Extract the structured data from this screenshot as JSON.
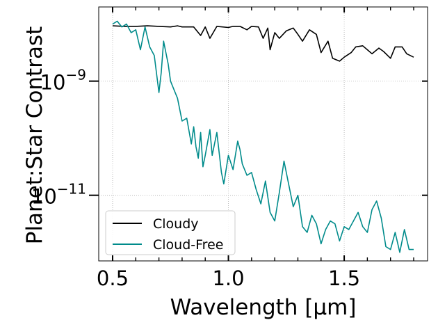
{
  "chart_data": {
    "type": "line",
    "xlabel": "Wavelength [μm]",
    "ylabel": "Planet:Star Contrast",
    "xscale": "linear",
    "yscale": "log",
    "xlim": [
      0.44,
      1.86
    ],
    "ylim_log10": [
      -12.15,
      -7.7
    ],
    "x_ticks": [
      0.5,
      1.0,
      1.5
    ],
    "x_tick_labels": [
      "0.5",
      "1.0",
      "1.5"
    ],
    "y_ticks_log10": [
      -9,
      -11
    ],
    "y_tick_labels": [
      {
        "base": "10",
        "exp": "−9"
      },
      {
        "base": "10",
        "exp": "−11"
      }
    ],
    "grid": true,
    "legend_position": "lower-left",
    "series": [
      {
        "name": "Cloudy",
        "color": "#000000",
        "x": [
          0.5,
          0.55,
          0.6,
          0.65,
          0.7,
          0.75,
          0.78,
          0.8,
          0.85,
          0.88,
          0.9,
          0.92,
          0.95,
          1.0,
          1.02,
          1.05,
          1.08,
          1.1,
          1.13,
          1.15,
          1.17,
          1.18,
          1.2,
          1.22,
          1.25,
          1.28,
          1.3,
          1.32,
          1.35,
          1.38,
          1.4,
          1.43,
          1.45,
          1.48,
          1.5,
          1.53,
          1.55,
          1.58,
          1.6,
          1.62,
          1.65,
          1.67,
          1.7,
          1.72,
          1.75,
          1.77,
          1.8
        ],
        "log10": [
          -8.03,
          -8.04,
          -8.04,
          -8.03,
          -8.04,
          -8.05,
          -8.03,
          -8.05,
          -8.05,
          -8.2,
          -8.05,
          -8.25,
          -8.04,
          -8.06,
          -8.04,
          -8.04,
          -8.1,
          -8.04,
          -8.05,
          -8.25,
          -8.07,
          -8.45,
          -8.15,
          -8.25,
          -8.12,
          -8.07,
          -8.18,
          -8.3,
          -8.1,
          -8.18,
          -8.5,
          -8.3,
          -8.6,
          -8.65,
          -8.58,
          -8.5,
          -8.4,
          -8.38,
          -8.45,
          -8.52,
          -8.42,
          -8.48,
          -8.6,
          -8.4,
          -8.4,
          -8.52,
          -8.58
        ]
      },
      {
        "name": "Cloud-Free",
        "color": "#008b8b",
        "x": [
          0.5,
          0.52,
          0.54,
          0.56,
          0.58,
          0.6,
          0.62,
          0.64,
          0.66,
          0.68,
          0.7,
          0.71,
          0.72,
          0.74,
          0.75,
          0.76,
          0.78,
          0.8,
          0.82,
          0.84,
          0.85,
          0.86,
          0.87,
          0.88,
          0.89,
          0.9,
          0.92,
          0.93,
          0.95,
          0.97,
          0.98,
          1.0,
          1.02,
          1.04,
          1.05,
          1.06,
          1.08,
          1.1,
          1.12,
          1.14,
          1.16,
          1.18,
          1.2,
          1.22,
          1.24,
          1.26,
          1.28,
          1.3,
          1.32,
          1.34,
          1.36,
          1.38,
          1.4,
          1.42,
          1.44,
          1.46,
          1.48,
          1.5,
          1.52,
          1.54,
          1.56,
          1.58,
          1.6,
          1.62,
          1.64,
          1.66,
          1.68,
          1.7,
          1.72,
          1.74,
          1.76,
          1.78,
          1.8
        ],
        "log10": [
          -8.0,
          -7.95,
          -8.05,
          -8.0,
          -8.15,
          -8.1,
          -8.45,
          -8.05,
          -8.4,
          -8.55,
          -9.2,
          -8.85,
          -8.3,
          -8.7,
          -9.0,
          -9.1,
          -9.3,
          -9.7,
          -9.65,
          -10.1,
          -9.8,
          -10.15,
          -10.35,
          -9.9,
          -10.5,
          -10.3,
          -9.85,
          -10.3,
          -9.9,
          -10.6,
          -10.8,
          -10.3,
          -10.55,
          -10.05,
          -10.2,
          -10.45,
          -10.65,
          -10.6,
          -10.9,
          -11.15,
          -10.75,
          -11.3,
          -11.45,
          -10.95,
          -10.4,
          -10.8,
          -11.2,
          -11.0,
          -11.55,
          -11.65,
          -11.35,
          -11.5,
          -11.85,
          -11.6,
          -11.45,
          -11.5,
          -11.8,
          -11.55,
          -11.6,
          -11.45,
          -11.3,
          -11.55,
          -11.65,
          -11.25,
          -11.1,
          -11.4,
          -11.9,
          -11.95,
          -11.65,
          -12.0,
          -11.6,
          -11.95,
          -11.95
        ]
      }
    ]
  }
}
